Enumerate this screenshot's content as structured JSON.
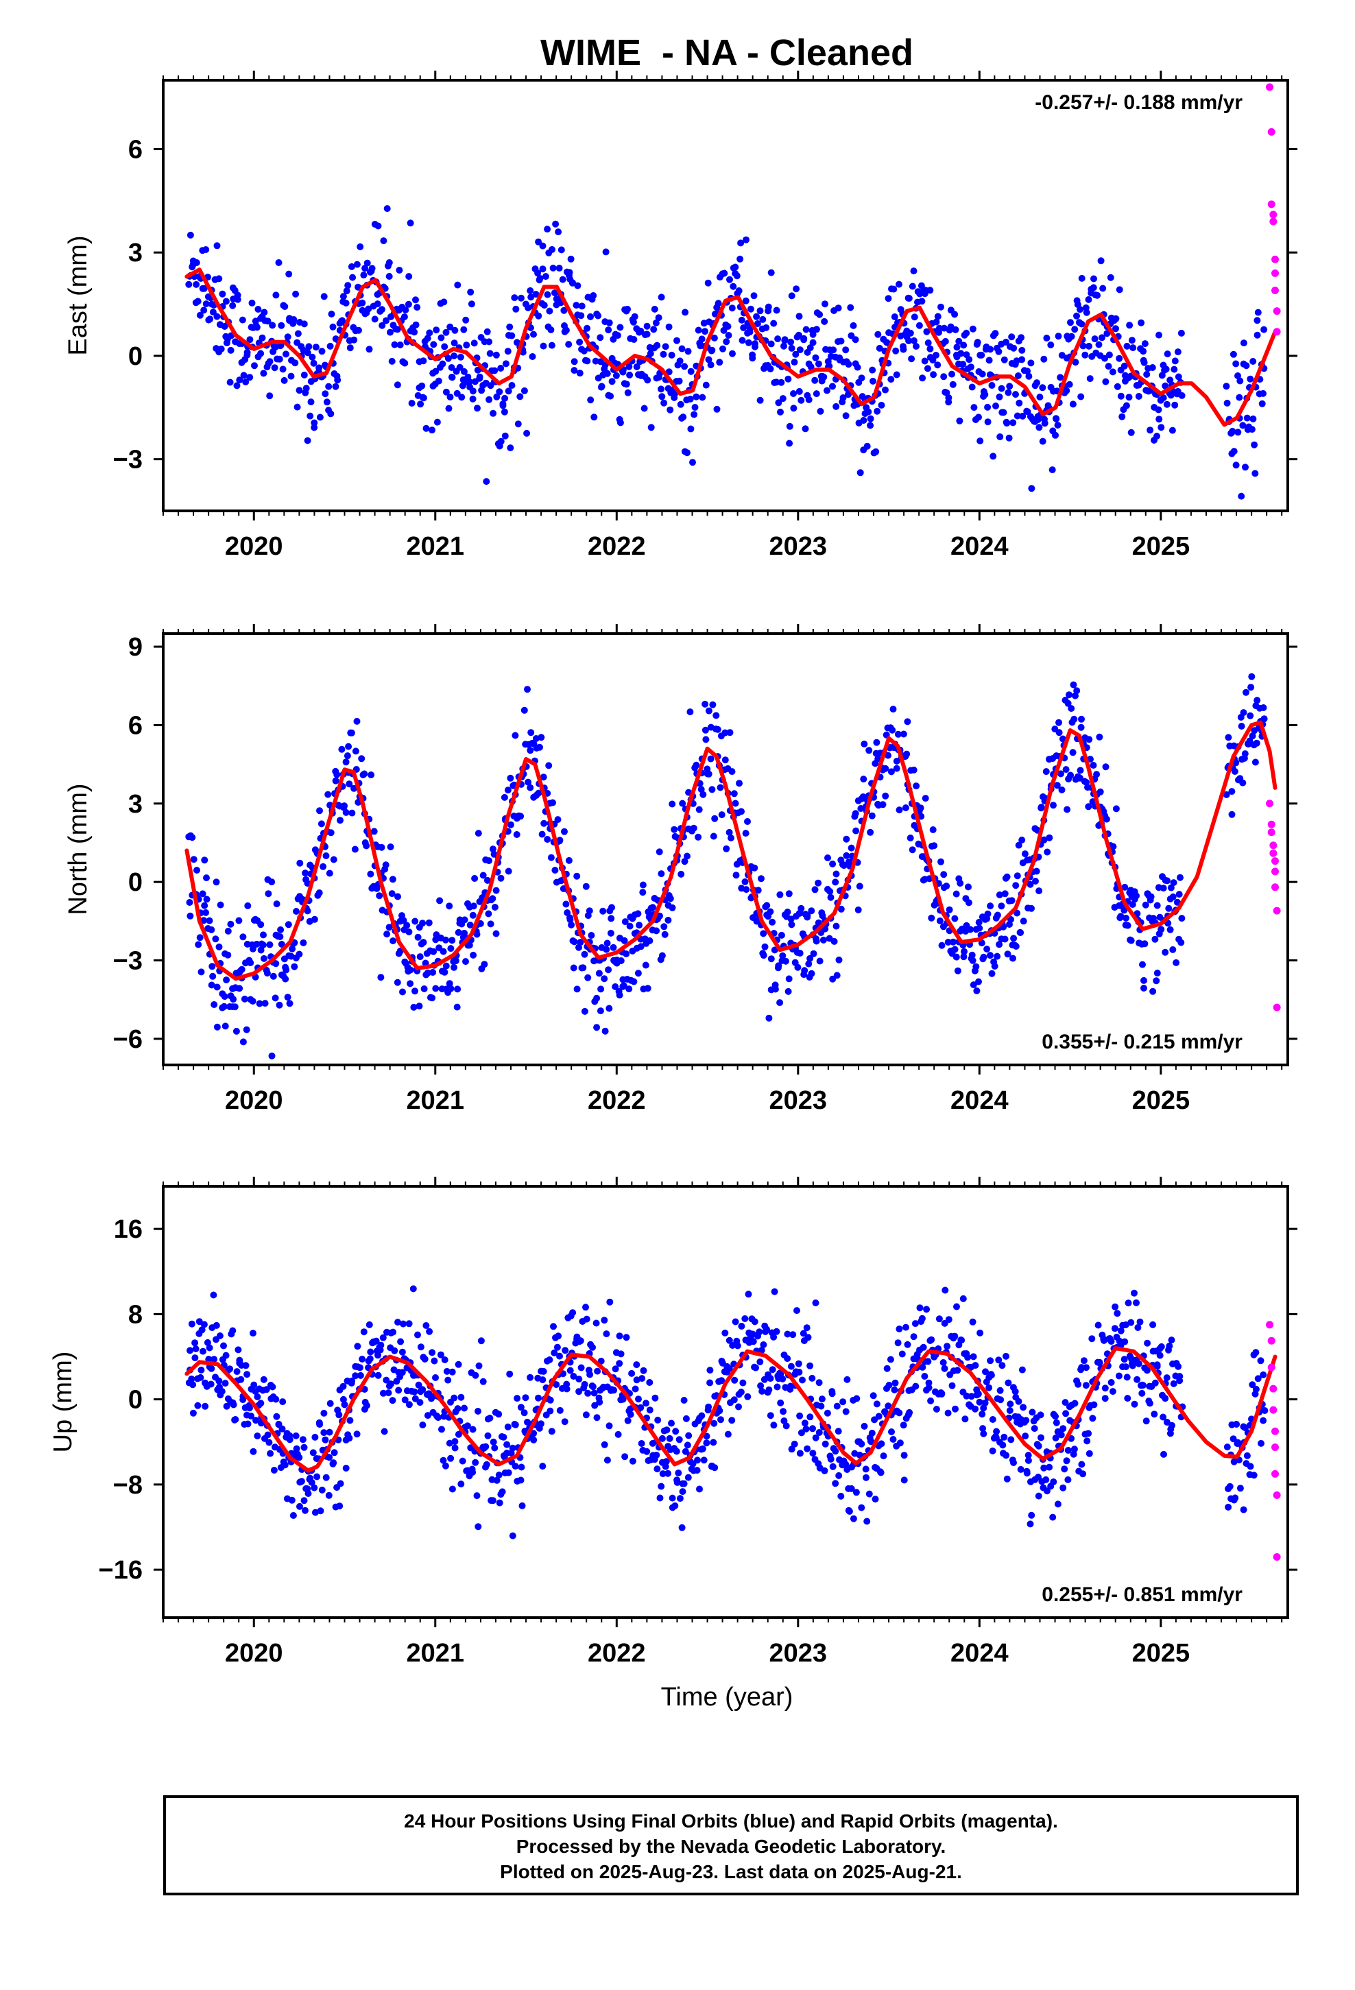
{
  "chart_data": {
    "title": "WIME  - NA - Cleaned",
    "type": "scatter",
    "xlabel": "Time (year)",
    "x_ticks": [
      "2020",
      "2021",
      "2022",
      "2023",
      "2024",
      "2025"
    ],
    "xlim": [
      2019.5,
      2025.7
    ],
    "colors": {
      "final": "#0000ff",
      "rapid": "#ff00ff",
      "model": "#ff0000"
    },
    "panels": [
      {
        "ylabel": "East (mm)",
        "ylim": [
          -4.5,
          8.0
        ],
        "yticks": [
          -3,
          0,
          3,
          6
        ],
        "ytick_labels": [
          "−3",
          "0",
          "3",
          "6"
        ],
        "rate_text": "-0.257+/- 0.188 mm/yr",
        "rate_position": "top-right",
        "model_fit": {
          "x": [
            2019.63,
            2019.7,
            2019.8,
            2019.9,
            2020.0,
            2020.1,
            2020.17,
            2020.25,
            2020.33,
            2020.4,
            2020.5,
            2020.6,
            2020.67,
            2020.75,
            2020.85,
            2021.0,
            2021.1,
            2021.17,
            2021.25,
            2021.35,
            2021.42,
            2021.5,
            2021.6,
            2021.67,
            2021.75,
            2021.85,
            2022.0,
            2022.1,
            2022.17,
            2022.25,
            2022.35,
            2022.42,
            2022.5,
            2022.6,
            2022.67,
            2022.75,
            2022.85,
            2023.0,
            2023.1,
            2023.17,
            2023.25,
            2023.35,
            2023.42,
            2023.5,
            2023.6,
            2023.67,
            2023.75,
            2023.85,
            2024.0,
            2024.1,
            2024.17,
            2024.25,
            2024.35,
            2024.42,
            2024.5,
            2024.6,
            2024.67,
            2024.75,
            2024.85,
            2025.0,
            2025.1,
            2025.17,
            2025.25,
            2025.35,
            2025.42,
            2025.5,
            2025.6,
            2025.63
          ],
          "y": [
            2.3,
            2.5,
            1.5,
            0.6,
            0.2,
            0.4,
            0.4,
            0.0,
            -0.6,
            -0.5,
            0.8,
            2.0,
            2.2,
            1.5,
            0.5,
            -0.1,
            0.2,
            0.1,
            -0.3,
            -0.8,
            -0.6,
            0.8,
            2.0,
            2.0,
            1.2,
            0.3,
            -0.4,
            0.0,
            -0.1,
            -0.4,
            -1.1,
            -1.0,
            0.4,
            1.6,
            1.7,
            0.9,
            0.0,
            -0.6,
            -0.4,
            -0.4,
            -0.7,
            -1.4,
            -1.2,
            0.2,
            1.3,
            1.4,
            0.6,
            -0.3,
            -0.8,
            -0.6,
            -0.6,
            -0.9,
            -1.7,
            -1.5,
            -0.2,
            1.0,
            1.2,
            0.5,
            -0.5,
            -1.1,
            -0.8,
            -0.8,
            -1.2,
            -2.0,
            -1.8,
            -1.0,
            0.3,
            0.7
          ]
        },
        "final_summary": [
          {
            "x": 2019.7,
            "mean": 1.6,
            "spread": 1.5
          },
          {
            "x": 2020.2,
            "mean": 0.0,
            "spread": 1.6
          },
          {
            "x": 2020.7,
            "mean": 1.8,
            "spread": 1.6
          },
          {
            "x": 2021.2,
            "mean": 0.0,
            "spread": 1.7
          },
          {
            "x": 2021.7,
            "mean": 2.3,
            "spread": 1.7
          },
          {
            "x": 2022.2,
            "mean": -0.3,
            "spread": 1.8
          },
          {
            "x": 2022.7,
            "mean": 1.2,
            "spread": 1.6
          },
          {
            "x": 2023.3,
            "mean": -1.0,
            "spread": 1.8
          },
          {
            "x": 2023.7,
            "mean": 1.4,
            "spread": 1.6
          },
          {
            "x": 2024.3,
            "mean": -1.2,
            "spread": 1.7
          },
          {
            "x": 2024.7,
            "mean": 0.6,
            "spread": 1.6
          },
          {
            "x": 2025.0,
            "mean": -1.0,
            "spread": 1.4
          },
          {
            "x": 2025.5,
            "mean": -1.0,
            "spread": 2.0
          }
        ],
        "rapid_points": {
          "x": [
            2025.6,
            2025.61,
            2025.61,
            2025.62,
            2025.62,
            2025.63,
            2025.63,
            2025.63,
            2025.64,
            2025.64
          ],
          "y": [
            7.8,
            6.5,
            4.4,
            4.1,
            3.9,
            2.8,
            2.4,
            1.9,
            1.3,
            0.7
          ]
        }
      },
      {
        "ylabel": "North (mm)",
        "ylim": [
          -7.0,
          9.5
        ],
        "yticks": [
          -6,
          -3,
          0,
          3,
          6,
          9
        ],
        "ytick_labels": [
          "−6",
          "−3",
          "0",
          "3",
          "6",
          "9"
        ],
        "rate_text": "0.355+/- 0.215 mm/yr",
        "rate_position": "bottom-right",
        "model_fit": {
          "x": [
            2019.63,
            2019.7,
            2019.8,
            2019.9,
            2020.0,
            2020.1,
            2020.2,
            2020.3,
            2020.4,
            2020.5,
            2020.55,
            2020.6,
            2020.7,
            2020.8,
            2020.9,
            2021.0,
            2021.1,
            2021.2,
            2021.3,
            2021.4,
            2021.5,
            2021.55,
            2021.6,
            2021.7,
            2021.8,
            2021.9,
            2022.0,
            2022.1,
            2022.2,
            2022.3,
            2022.4,
            2022.5,
            2022.55,
            2022.6,
            2022.7,
            2022.8,
            2022.9,
            2023.0,
            2023.1,
            2023.2,
            2023.3,
            2023.4,
            2023.5,
            2023.55,
            2023.6,
            2023.7,
            2023.8,
            2023.9,
            2024.0,
            2024.1,
            2024.2,
            2024.3,
            2024.4,
            2024.5,
            2024.55,
            2024.6,
            2024.7,
            2024.8,
            2024.9,
            2025.0,
            2025.1,
            2025.2,
            2025.3,
            2025.4,
            2025.5,
            2025.55,
            2025.6,
            2025.63
          ],
          "y": [
            1.2,
            -1.5,
            -3.2,
            -3.7,
            -3.5,
            -3.0,
            -2.3,
            -0.5,
            2.0,
            4.3,
            4.2,
            3.0,
            0.0,
            -2.3,
            -3.3,
            -3.2,
            -2.8,
            -2.0,
            -0.3,
            2.5,
            4.7,
            4.5,
            3.3,
            0.5,
            -2.0,
            -2.9,
            -2.7,
            -2.2,
            -1.5,
            0.2,
            3.0,
            5.1,
            4.8,
            3.7,
            1.0,
            -1.5,
            -2.6,
            -2.4,
            -1.9,
            -1.2,
            0.5,
            3.3,
            5.5,
            5.2,
            4.0,
            1.3,
            -1.2,
            -2.3,
            -2.2,
            -1.7,
            -1.0,
            0.8,
            3.7,
            5.8,
            5.6,
            4.4,
            1.6,
            -0.8,
            -1.8,
            -1.6,
            -1.0,
            0.2,
            2.5,
            4.8,
            6.0,
            6.1,
            5.0,
            3.6
          ]
        },
        "final_summary": [
          {
            "x": 2019.8,
            "mean": -2.5,
            "spread": 2.5
          },
          {
            "x": 2020.5,
            "mean": 4.2,
            "spread": 1.8
          },
          {
            "x": 2020.9,
            "mean": -3.2,
            "spread": 1.8
          },
          {
            "x": 2021.5,
            "mean": 4.6,
            "spread": 1.8
          },
          {
            "x": 2021.9,
            "mean": -3.2,
            "spread": 2.0
          },
          {
            "x": 2022.5,
            "mean": 5.2,
            "spread": 1.8
          },
          {
            "x": 2022.9,
            "mean": -2.0,
            "spread": 2.0
          },
          {
            "x": 2023.5,
            "mean": 5.4,
            "spread": 1.8
          },
          {
            "x": 2023.9,
            "mean": -2.3,
            "spread": 1.9
          },
          {
            "x": 2024.5,
            "mean": 5.8,
            "spread": 1.8
          },
          {
            "x": 2024.9,
            "mean": -1.6,
            "spread": 1.8
          },
          {
            "x": 2025.5,
            "mean": 5.0,
            "spread": 1.6
          }
        ],
        "rapid_points": {
          "x": [
            2025.6,
            2025.61,
            2025.61,
            2025.62,
            2025.62,
            2025.63,
            2025.63,
            2025.63,
            2025.64,
            2025.64
          ],
          "y": [
            3.0,
            2.2,
            1.9,
            1.4,
            1.1,
            0.8,
            0.4,
            -0.2,
            -1.1,
            -4.8
          ]
        }
      },
      {
        "ylabel": "Up (mm)",
        "ylim": [
          -20.5,
          20.0
        ],
        "yticks": [
          -16,
          -8,
          0,
          8,
          16
        ],
        "ytick_labels": [
          "−16",
          "−8",
          "0",
          "8",
          "16"
        ],
        "rate_text": "0.255+/- 0.851 mm/yr",
        "rate_position": "bottom-right",
        "model_fit": {
          "x": [
            2019.63,
            2019.7,
            2019.8,
            2019.9,
            2020.0,
            2020.1,
            2020.2,
            2020.3,
            2020.35,
            2020.45,
            2020.55,
            2020.65,
            2020.75,
            2020.85,
            2020.95,
            2021.05,
            2021.15,
            2021.25,
            2021.35,
            2021.45,
            2021.55,
            2021.65,
            2021.75,
            2021.85,
            2021.95,
            2022.05,
            2022.15,
            2022.25,
            2022.32,
            2022.4,
            2022.5,
            2022.6,
            2022.72,
            2022.82,
            2022.95,
            2023.05,
            2023.15,
            2023.25,
            2023.32,
            2023.4,
            2023.5,
            2023.6,
            2023.72,
            2023.82,
            2023.95,
            2024.05,
            2024.15,
            2024.25,
            2024.35,
            2024.45,
            2024.55,
            2024.65,
            2024.75,
            2024.85,
            2024.95,
            2025.05,
            2025.15,
            2025.25,
            2025.35,
            2025.42,
            2025.5,
            2025.57,
            2025.63
          ],
          "y": [
            2.4,
            3.5,
            3.3,
            1.5,
            -0.5,
            -3.0,
            -5.5,
            -6.7,
            -6.3,
            -3.5,
            0.0,
            2.8,
            4.0,
            3.4,
            1.7,
            -0.5,
            -3.0,
            -5.0,
            -6.1,
            -5.3,
            -2.0,
            1.8,
            4.2,
            4.0,
            2.5,
            0.5,
            -2.0,
            -4.5,
            -6.1,
            -5.5,
            -2.5,
            1.5,
            4.5,
            4.1,
            2.3,
            0.0,
            -2.5,
            -5.0,
            -6.0,
            -5.0,
            -1.5,
            2.0,
            4.5,
            4.3,
            2.5,
            0.3,
            -2.0,
            -4.2,
            -5.6,
            -4.6,
            -1.5,
            2.0,
            4.8,
            4.5,
            3.0,
            0.5,
            -2.0,
            -4.0,
            -5.3,
            -5.4,
            -3.0,
            0.8,
            4.0
          ]
        },
        "final_summary": [
          {
            "x": 2019.7,
            "mean": 4.0,
            "spread": 4.5
          },
          {
            "x": 2020.3,
            "mean": -7.0,
            "spread": 5.0
          },
          {
            "x": 2020.8,
            "mean": 4.0,
            "spread": 5.0
          },
          {
            "x": 2021.3,
            "mean": -6.0,
            "spread": 5.0
          },
          {
            "x": 2021.8,
            "mean": 5.0,
            "spread": 5.0
          },
          {
            "x": 2022.3,
            "mean": -5.0,
            "spread": 5.0
          },
          {
            "x": 2022.8,
            "mean": 5.0,
            "spread": 5.0
          },
          {
            "x": 2023.3,
            "mean": -7.0,
            "spread": 6.0
          },
          {
            "x": 2023.8,
            "mean": 5.0,
            "spread": 5.0
          },
          {
            "x": 2024.3,
            "mean": -5.0,
            "spread": 5.0
          },
          {
            "x": 2024.8,
            "mean": 4.0,
            "spread": 5.0
          },
          {
            "x": 2025.5,
            "mean": -8.0,
            "spread": 5.0
          }
        ],
        "rapid_points": {
          "x": [
            2025.6,
            2025.61,
            2025.61,
            2025.62,
            2025.62,
            2025.63,
            2025.63,
            2025.63,
            2025.64,
            2025.64
          ],
          "y": [
            7.0,
            5.5,
            3.0,
            1.0,
            -1.0,
            -3.0,
            -4.5,
            -7.0,
            -9.0,
            -14.8
          ]
        }
      }
    ]
  },
  "footer": {
    "line1": "24 Hour Positions Using Final Orbits (blue) and Rapid Orbits (magenta).",
    "line2": "Processed by the Nevada Geodetic Laboratory.",
    "line3": "Plotted on 2025-Aug-23. Last data on 2025-Aug-21."
  }
}
